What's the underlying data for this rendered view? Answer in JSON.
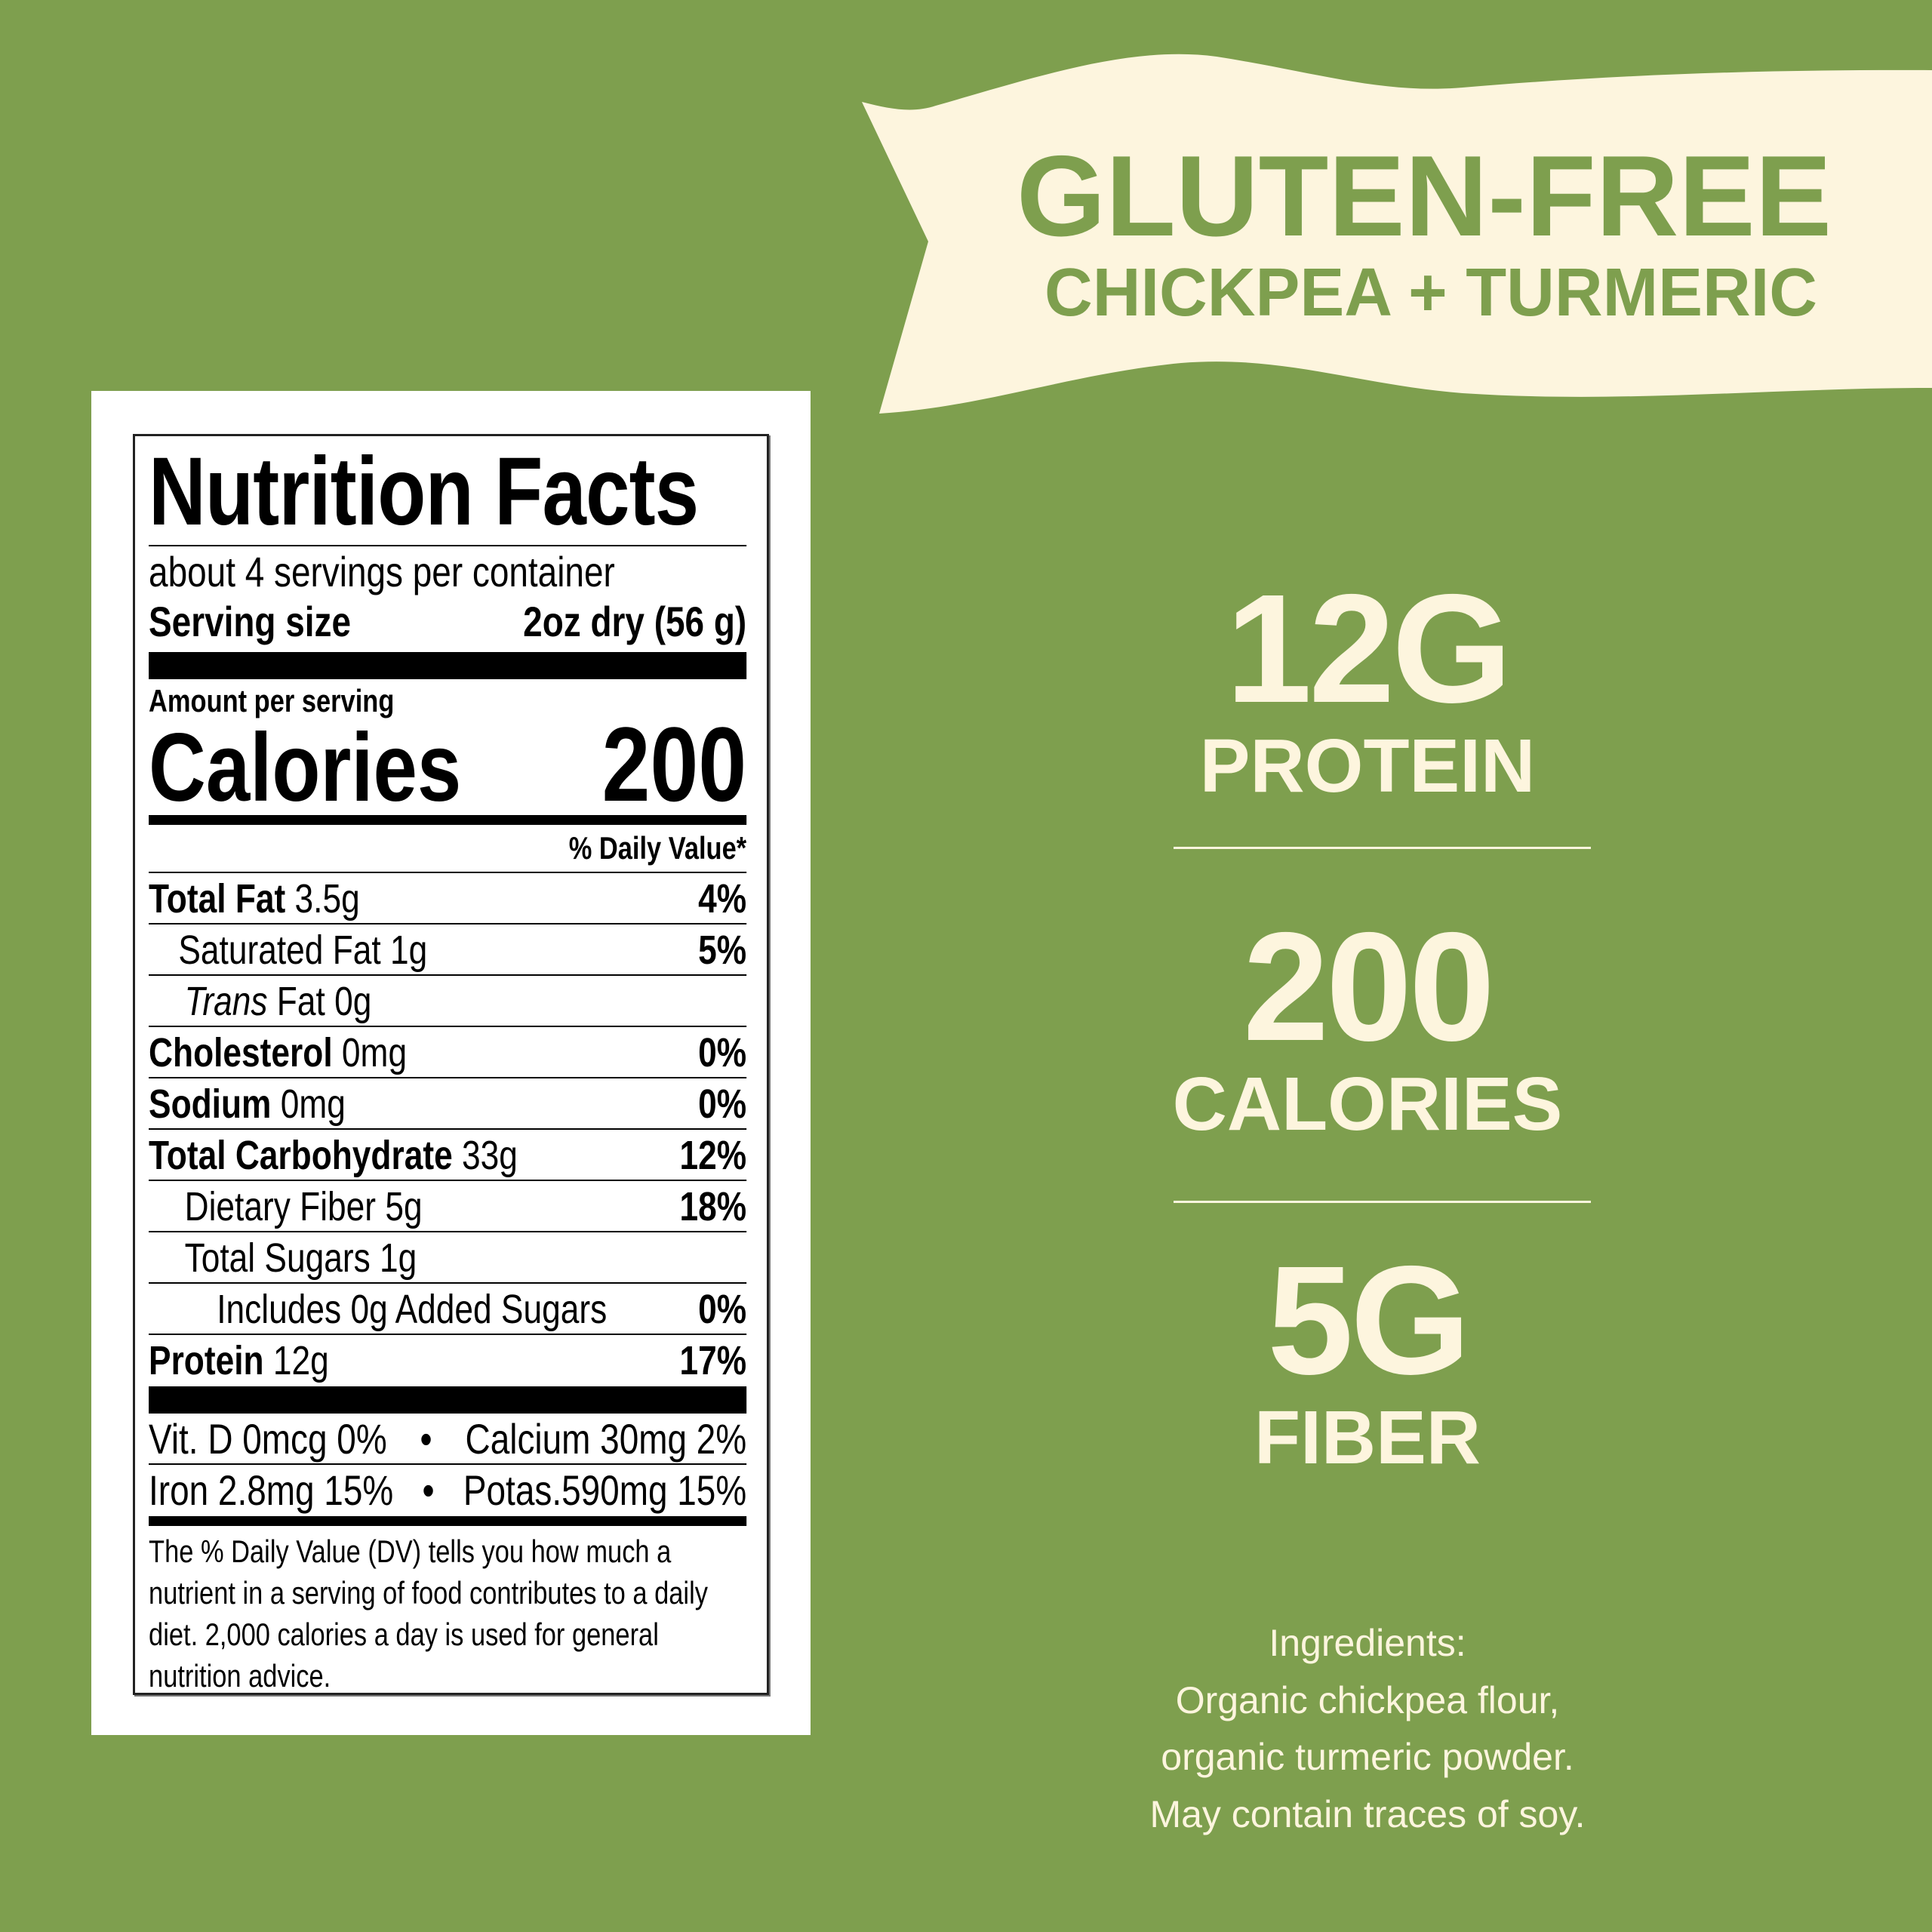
{
  "colors": {
    "background": "#7e9f4e",
    "cream": "#fdf5de",
    "banner_text": "#7e9f4e"
  },
  "banner": {
    "title": "GLUTEN-FREE",
    "subtitle": "CHICKPEA + TURMERIC"
  },
  "nutrition": {
    "title": "Nutrition Facts",
    "servings": "about 4 servings per container",
    "serving_size_label": "Serving size",
    "serving_size_value": "2oz dry (56 g)",
    "amount_label": "Amount per serving",
    "calories_label": "Calories",
    "calories_value": "200",
    "dv_header": "% Daily Value*",
    "rows": [
      {
        "name": "Total Fat",
        "amount": " 3.5g",
        "dv": "4%"
      },
      {
        "name": "Saturated Fat 1g",
        "amount": "",
        "dv": "5%"
      },
      {
        "name": "Trans",
        "amount": " Fat 0g",
        "dv": ""
      },
      {
        "name": "Cholesterol",
        "amount": " 0mg",
        "dv": "0%"
      },
      {
        "name": "Sodium",
        "amount": " 0mg",
        "dv": "0%"
      },
      {
        "name": "Total Carbohydrate",
        "amount": " 33g",
        "dv": "12%"
      },
      {
        "name": "Dietary Fiber 5g",
        "amount": "",
        "dv": "18%"
      },
      {
        "name": "Total Sugars 1g",
        "amount": "",
        "dv": ""
      },
      {
        "name": "Includes 0g Added Sugars",
        "amount": "",
        "dv": "0%"
      },
      {
        "name": "Protein",
        "amount": " 12g",
        "dv": "17%"
      }
    ],
    "vitamins": [
      {
        "left": "Vit. D 0mcg 0%",
        "sep": "•",
        "right": "Calcium 30mg 2%"
      },
      {
        "left": "Iron 2.8mg 15%",
        "sep": "•",
        "right": "Potas.590mg 15%"
      }
    ],
    "footnote": "The % Daily Value (DV) tells you how much a nutrient in a serving of food contributes to a daily diet. 2,000 calories a day is used for general nutrition advice."
  },
  "stats": [
    {
      "value": "12G",
      "label": "PROTEIN"
    },
    {
      "value": "200",
      "label": "CALORIES"
    },
    {
      "value": "5G",
      "label": "FIBER"
    }
  ],
  "ingredients": {
    "heading": "Ingredients:",
    "lines": [
      "Organic chickpea flour,",
      "organic turmeric powder.",
      "May contain traces of soy."
    ]
  }
}
